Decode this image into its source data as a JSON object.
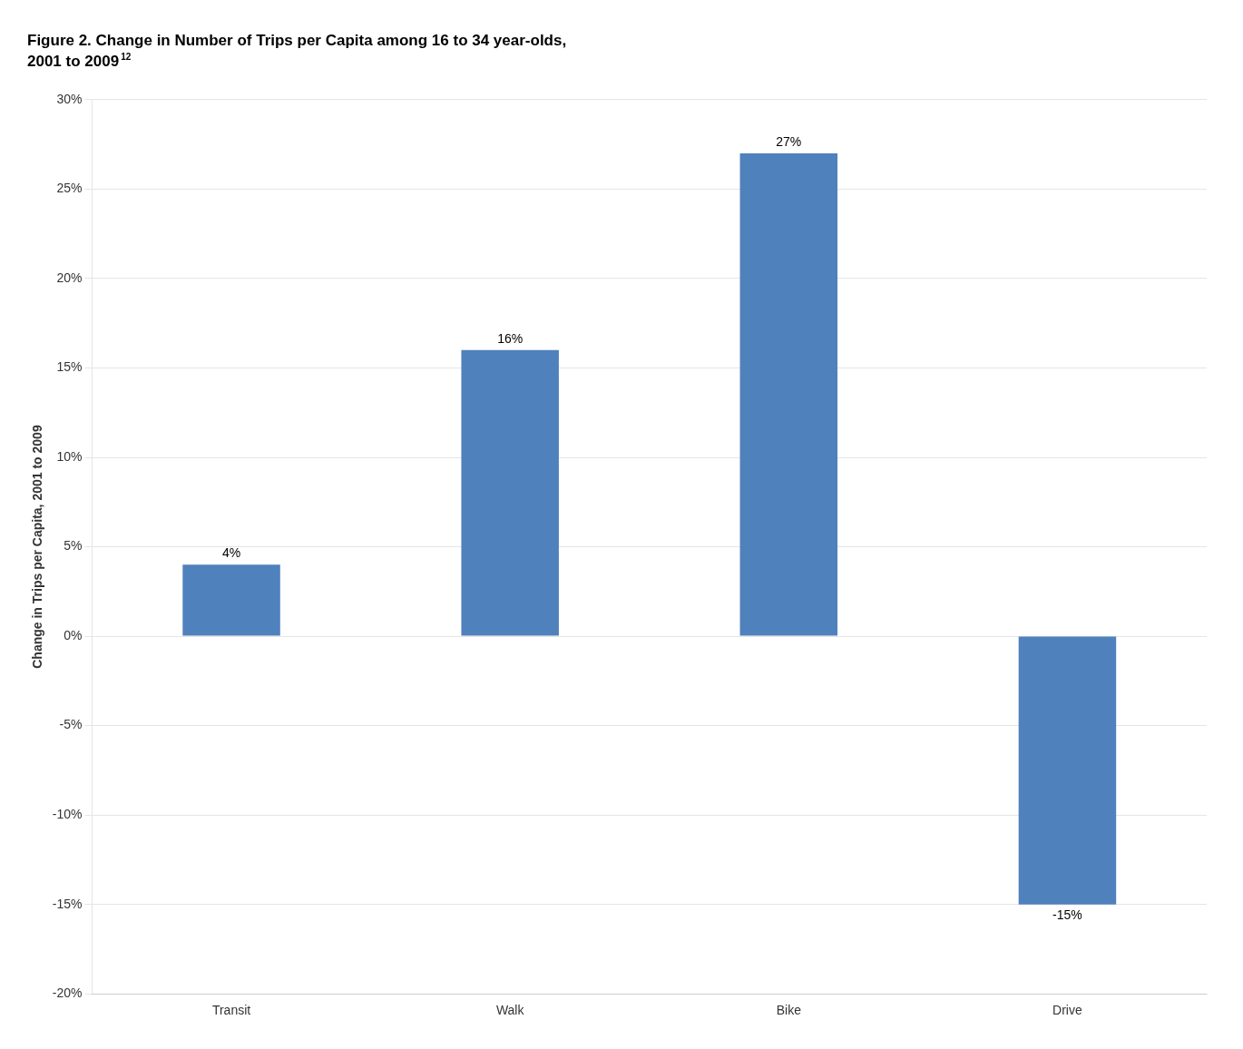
{
  "chart_data": {
    "type": "bar",
    "title": [
      "Figure 2. Change in Number of Trips per Capita among 16 to 34 year-olds,",
      "2001 to 2009"
    ],
    "annotations": [
      "12"
    ],
    "categories": [
      "Transit",
      "Walk",
      "Bike",
      "Drive"
    ],
    "values": [
      0.04,
      0.16,
      0.27,
      -0.15
    ],
    "value_labels": [
      "4%",
      "16%",
      "27%",
      "-15%"
    ],
    "data_labels": true,
    "color": "#4F81BD",
    "ylabel": "Change in Trips per Capita, 2001 to 2009",
    "ylim": [
      -0.2,
      0.3
    ],
    "yticks": [
      {
        "value": -0.2,
        "label": "-20%"
      },
      {
        "value": -0.15,
        "label": "-15%"
      },
      {
        "value": -0.1,
        "label": "-10%"
      },
      {
        "value": -0.05,
        "label": "-5%"
      },
      {
        "value": 0,
        "label": "0%"
      },
      {
        "value": 0.05,
        "label": "5%"
      },
      {
        "value": 0.1,
        "label": "10%"
      },
      {
        "value": 0.15,
        "label": "15%"
      },
      {
        "value": 0.2,
        "label": "20%"
      },
      {
        "value": 0.25,
        "label": "25%"
      },
      {
        "value": 0.3,
        "label": "30%"
      }
    ],
    "grid": true
  }
}
